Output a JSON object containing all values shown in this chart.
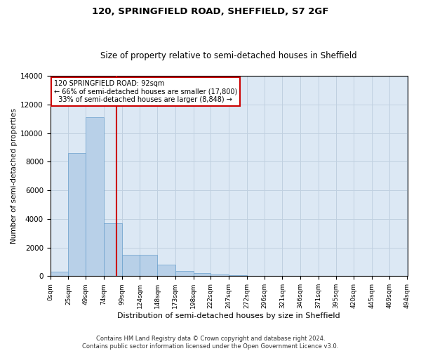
{
  "title": "120, SPRINGFIELD ROAD, SHEFFIELD, S7 2GF",
  "subtitle": "Size of property relative to semi-detached houses in Sheffield",
  "xlabel": "Distribution of semi-detached houses by size in Sheffield",
  "ylabel": "Number of semi-detached properties",
  "property_size": 92,
  "property_label": "120 SPRINGFIELD ROAD: 92sqm",
  "pct_smaller": 66,
  "pct_larger": 33,
  "count_smaller": 17800,
  "count_larger": 8848,
  "bin_edges": [
    0,
    25,
    49,
    74,
    99,
    124,
    148,
    173,
    198,
    222,
    247,
    272,
    296,
    321,
    346,
    371,
    395,
    420,
    445,
    469,
    494
  ],
  "bin_labels": [
    "0sqm",
    "25sqm",
    "49sqm",
    "74sqm",
    "99sqm",
    "124sqm",
    "148sqm",
    "173sqm",
    "198sqm",
    "222sqm",
    "247sqm",
    "272sqm",
    "296sqm",
    "321sqm",
    "346sqm",
    "371sqm",
    "395sqm",
    "420sqm",
    "445sqm",
    "469sqm",
    "494sqm"
  ],
  "bar_heights": [
    300,
    8600,
    11100,
    3700,
    1500,
    1500,
    800,
    350,
    200,
    100,
    50,
    0,
    0,
    0,
    0,
    0,
    0,
    0,
    0,
    0
  ],
  "bar_color": "#b8d0e8",
  "bar_edge_color": "#6aa0cc",
  "grid_color": "#c0d0e0",
  "background_color": "#dce8f4",
  "annotation_box_color": "#ffffff",
  "annotation_box_edge": "#cc0000",
  "vline_color": "#cc0000",
  "ylim": [
    0,
    14000
  ],
  "xlim": [
    0,
    494
  ],
  "yticks": [
    0,
    2000,
    4000,
    6000,
    8000,
    10000,
    12000,
    14000
  ],
  "footer": "Contains HM Land Registry data © Crown copyright and database right 2024.\nContains public sector information licensed under the Open Government Licence v3.0."
}
